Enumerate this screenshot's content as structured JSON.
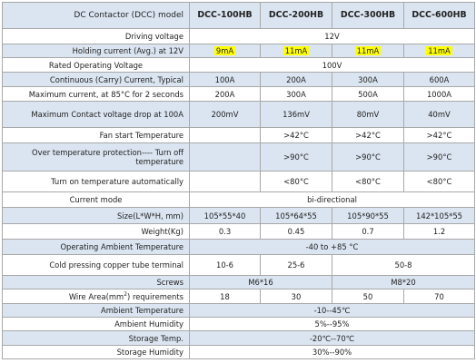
{
  "header": {
    "title": "DC Contactor (DCC) model",
    "models": [
      "DCC-100HB",
      "DCC-200HB",
      "DCC-300HB",
      "DCC-600HB"
    ]
  },
  "rows": {
    "driving_voltage": {
      "label": "Driving voltage",
      "value": "12V"
    },
    "holding_current": {
      "label": "Holding current (Avg.) at 12V",
      "values": [
        "9mA",
        "11mA",
        "11mA",
        "11mA"
      ]
    },
    "rated_voltage": {
      "label": "Rated Operating Voltage",
      "value": "100V"
    },
    "continuous_current": {
      "label": "Continuous (Carry) Current, Typical",
      "values": [
        "100A",
        "200A",
        "300A",
        "600A"
      ]
    },
    "max_current": {
      "label": "Maximum current, at 85°C for 2 seconds",
      "values": [
        "200A",
        "300A",
        "500A",
        "1000A"
      ]
    },
    "max_voltage_drop": {
      "label": "Maximum Contact voltage drop at 100A",
      "values": [
        "200mV",
        "136mV",
        "80mV",
        "40mV"
      ]
    },
    "fan_start": {
      "label": "Fan start Temperature",
      "values": [
        "",
        ">42°C",
        ">42°C",
        ">42°C"
      ]
    },
    "over_temp": {
      "label": "Over temperature protection---- Turn off temperature",
      "values": [
        "",
        ">90°C",
        ">90°C",
        ">90°C"
      ]
    },
    "turn_on_temp": {
      "label": "Turn on temperature automatically",
      "values": [
        "",
        "<80°C",
        "<80°C",
        "<80°C"
      ]
    },
    "current_mode": {
      "label": "Current mode",
      "value": "bi-directional"
    },
    "size": {
      "label": "Size(L*W*H, mm)",
      "values": [
        "105*55*40",
        "105*64*55",
        "105*90*55",
        "142*105*55"
      ]
    },
    "weight": {
      "label": "Weight(Kg)",
      "values": [
        "0.3",
        "0.45",
        "0.7",
        "1.2"
      ]
    },
    "ambient_temp_op": {
      "label": "Operating Ambient Temperature",
      "value": "-40 to +85 °C"
    },
    "terminal": {
      "label": "Cold pressing copper tube terminal",
      "values": [
        "10-6",
        "25-6",
        "50-8"
      ]
    },
    "screws": {
      "label": "Screws",
      "values": [
        "M6*16",
        "M8*20"
      ]
    },
    "wire_area": {
      "label_pre": "Wire Area(mm",
      "label_sup": "2",
      "label_post": ") requirements",
      "values": [
        "18",
        "30",
        "50",
        "70"
      ]
    },
    "ambient_temp": {
      "label": "Ambient Temperature",
      "value": "-10--45℃"
    },
    "ambient_humidity": {
      "label": "Ambient Humidity",
      "value": "5%--95%"
    },
    "storage_temp": {
      "label": "Storage Temp.",
      "value": "-20℃--70℃"
    },
    "storage_humidity": {
      "label": "Storage Humidity",
      "value": "30%--90%"
    }
  },
  "colors": {
    "row_alt": "#dbe5f1",
    "highlight": "#ffff00",
    "border": "#a8a8a8"
  }
}
